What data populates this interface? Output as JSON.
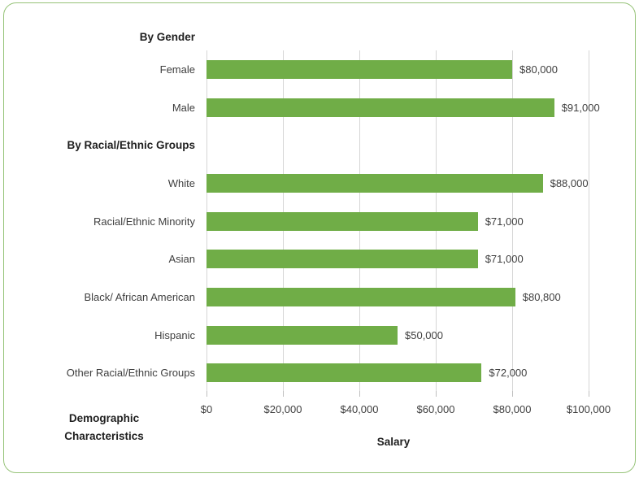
{
  "window": {
    "background_color": "#ffffff",
    "frame_border_color": "#96c378"
  },
  "chart_data": {
    "type": "bar",
    "orientation": "horizontal",
    "title": "",
    "legend": "none",
    "grid": "vertical",
    "bar_color": "#70ad47",
    "gridline_color": "#d6d6d6",
    "tick_mark_color": "#bfbfbf",
    "text_color": "#3f3f3f",
    "header_text_color": "#1f1f1f",
    "rows": [
      {
        "kind": "group_header",
        "label": "By Gender",
        "placement": "above_plot"
      },
      {
        "kind": "bar",
        "label": "Female",
        "value": 80000,
        "value_label": "$80,000"
      },
      {
        "kind": "bar",
        "label": "Male",
        "value": 91000,
        "value_label": "$91,000"
      },
      {
        "kind": "group_header",
        "label": "By Racial/Ethnic Groups",
        "placement": "in_plot"
      },
      {
        "kind": "bar",
        "label": "White",
        "value": 88000,
        "value_label": "$88,000"
      },
      {
        "kind": "bar",
        "label": "Racial/Ethnic Minority",
        "value": 71000,
        "value_label": "$71,000"
      },
      {
        "kind": "bar",
        "label": "Asian",
        "value": 71000,
        "value_label": "$71,000"
      },
      {
        "kind": "bar",
        "label": "Black/ African American",
        "value": 80800,
        "value_label": "$80,800"
      },
      {
        "kind": "bar",
        "label": "Hispanic",
        "value": 50000,
        "value_label": "$50,000"
      },
      {
        "kind": "bar",
        "label": "Other Racial/Ethnic Groups",
        "value": 72000,
        "value_label": "$72,000"
      }
    ],
    "x_axis": {
      "title": "Salary",
      "min": 0,
      "max": 100000,
      "tick_interval": 20000,
      "ticks": [
        {
          "value": 0,
          "label": "$0"
        },
        {
          "value": 20000,
          "label": "$20,000"
        },
        {
          "value": 40000,
          "label": "$40,000"
        },
        {
          "value": 60000,
          "label": "$60,000"
        },
        {
          "value": 80000,
          "label": "$80,000"
        },
        {
          "value": 100000,
          "label": "$100,000"
        }
      ]
    },
    "y_axis": {
      "title": "Demographic Characteristics",
      "title_lines": [
        "Demographic",
        "Characteristics"
      ]
    }
  }
}
